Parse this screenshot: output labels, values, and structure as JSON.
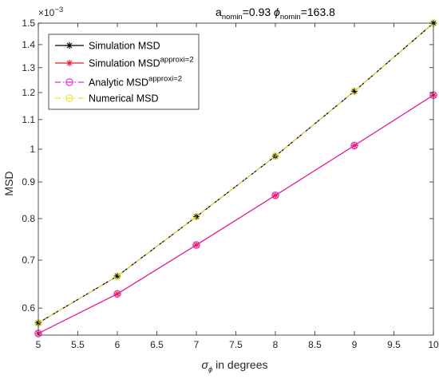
{
  "chart_data": {
    "type": "line",
    "title": {
      "part1": "a",
      "part1_sub": "nomin",
      "part2": "=0.93 ",
      "part3": "ϕ",
      "part3_sub": "nomin",
      "part4": "=163.8"
    },
    "xlabel": {
      "symbol": "σ",
      "sub": "ϕ",
      "rest": " in degrees"
    },
    "ylabel": "MSD",
    "y_exponent": {
      "base": "×10",
      "power": "−3"
    },
    "xlim": [
      5,
      10
    ],
    "ylim": [
      0.00055,
      0.0015
    ],
    "y_scale": "log",
    "grid": false,
    "legend_position": "top-left",
    "x_ticks": [
      5,
      5.5,
      6,
      6.5,
      7,
      7.5,
      8,
      8.5,
      9,
      9.5,
      10
    ],
    "x_tick_labels": [
      "5",
      "5.5",
      "6",
      "6.5",
      "7",
      "7.5",
      "8",
      "8.5",
      "9",
      "9.5",
      "10"
    ],
    "y_ticks": [
      0.0006,
      0.0007,
      0.0008,
      0.0009,
      0.001,
      0.0011,
      0.0012,
      0.0013,
      0.0014,
      0.0015
    ],
    "y_tick_labels": [
      "0.6",
      "0.7",
      "0.8",
      "0.9",
      "1",
      "1.1",
      "1.2",
      "1.3",
      "1.4",
      "1.5"
    ],
    "x": [
      5,
      6,
      7,
      8,
      9,
      10
    ],
    "series": [
      {
        "name": "Simulation MSD",
        "name_sup": "",
        "color": "#000000",
        "marker": "asterisk",
        "dash": "solid",
        "values": [
          0.000572,
          0.000665,
          0.000805,
          0.000978,
          0.001205,
          0.0015
        ]
      },
      {
        "name": "Simulation MSD",
        "name_sup": "approxi=2",
        "color": "#e8192c",
        "marker": "asterisk",
        "dash": "solid",
        "values": [
          0.000553,
          0.000628,
          0.000735,
          0.000862,
          0.001012,
          0.00119
        ]
      },
      {
        "name": "Analytic MSD",
        "name_sup": "approxi=2",
        "color": "#e020e0",
        "marker": "circle",
        "dash": "dashdot",
        "values": [
          0.000553,
          0.000628,
          0.000735,
          0.000862,
          0.001012,
          0.00119
        ]
      },
      {
        "name": "Numerical MSD",
        "name_sup": "",
        "color": "#f0e030",
        "marker": "circle",
        "dash": "dashdot",
        "values": [
          0.000572,
          0.000665,
          0.000805,
          0.000978,
          0.001205,
          0.0015
        ]
      }
    ]
  }
}
